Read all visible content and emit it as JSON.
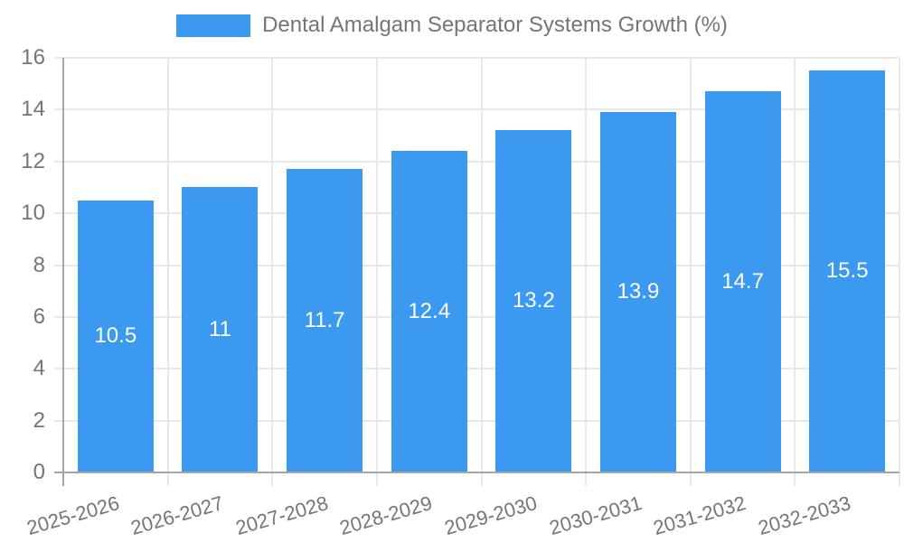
{
  "chart_data": {
    "type": "bar",
    "title": "Dental Amalgam Separator Systems Growth (%)",
    "categories": [
      "2025-2026",
      "2026-2027",
      "2027-2028",
      "2028-2029",
      "2029-2030",
      "2030-2031",
      "2031-2032",
      "2032-2033"
    ],
    "values": [
      10.5,
      11,
      11.7,
      12.4,
      13.2,
      13.9,
      14.7,
      15.5
    ],
    "value_labels": [
      "10.5",
      "11",
      "11.7",
      "12.4",
      "13.2",
      "13.9",
      "14.7",
      "15.5"
    ],
    "xlabel": "",
    "ylabel": "",
    "ylim": [
      0,
      16
    ],
    "ytick_step": 2,
    "ytick_labels": [
      "0",
      "2",
      "4",
      "6",
      "8",
      "10",
      "12",
      "14",
      "16"
    ],
    "grid": true,
    "legend_position": "top",
    "bar_color": "#3B99F0",
    "text_color": "#757575",
    "grid_color": "#e8e8e8",
    "axis_color": "#a6a6a6",
    "value_label_color": "#ffffff"
  }
}
